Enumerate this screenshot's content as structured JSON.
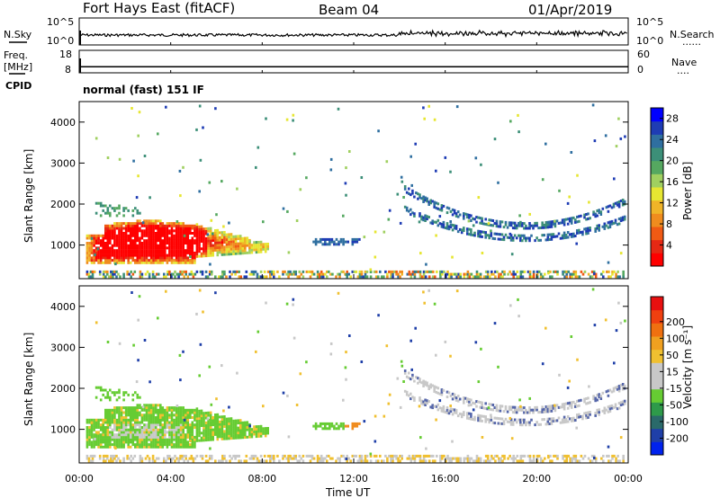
{
  "header": {
    "station": "Fort Hays East (fitACF)",
    "beam": "Beam 04",
    "date": "01/Apr/2019",
    "mode": "normal (fast) 151 IF"
  },
  "side_labels": {
    "nsky": "N.Sky",
    "freq_line1": "Freq.",
    "freq_line2": "[MHz]",
    "cpid": "CPID",
    "nsearch": "N.Search",
    "nave": "Nave",
    "dots": "......",
    "dots_short": "...."
  },
  "colors": {
    "power_bar": [
      "#0000ff",
      "#1e3cb4",
      "#2f6fa0",
      "#3c8f78",
      "#55a860",
      "#a0d060",
      "#e6e632",
      "#f0b428",
      "#f08c1e",
      "#f05a14",
      "#e62814",
      "#ff0000"
    ],
    "velocity_bar": [
      "#0022ee",
      "#1f3fa8",
      "#2a6a6a",
      "#2e9a4a",
      "#66cc33",
      "#c8c8c8",
      "#c8c8c8",
      "#f0c030",
      "#f0a020",
      "#f07010",
      "#f04010",
      "#e81010"
    ]
  },
  "chart_data": [
    {
      "type": "line",
      "name": "noise-panel",
      "ylabel_left": "N.Sky",
      "ylabel_right": "N.Search",
      "left_ticks": [
        "10^5",
        "10^0"
      ],
      "right_ticks": [
        "10^5",
        "10^0"
      ],
      "x_range_hours": [
        0,
        24
      ],
      "series": [
        {
          "values_hours": [
            0.1,
            2,
            4,
            6,
            8,
            10,
            12,
            14,
            16,
            18,
            20,
            22,
            24
          ],
          "level": "mid"
        }
      ]
    },
    {
      "type": "line",
      "name": "frequency-panel",
      "ylabel_left": "Freq. [MHz]",
      "ylabel_right": "Nave",
      "left_ticks": [
        18,
        8
      ],
      "right_ticks": [
        60,
        0
      ],
      "ylim_left": [
        8,
        18
      ],
      "x_range_hours": [
        0,
        24
      ],
      "frequency_mhz_approx": 10.7
    },
    {
      "type": "heatmap",
      "name": "power",
      "ylabel": "Slant Range [km]",
      "ylim": [
        180,
        4500
      ],
      "yticks": [
        1000,
        2000,
        3000,
        4000
      ],
      "colorbar_label": "Power [dB]",
      "colorbar_ticks": [
        4,
        8,
        12,
        16,
        20,
        24,
        28
      ],
      "colorbar_range": [
        0,
        30
      ]
    },
    {
      "type": "heatmap",
      "name": "velocity",
      "ylabel": "Slant Range [km]",
      "ylim": [
        180,
        4500
      ],
      "yticks": [
        1000,
        2000,
        3000,
        4000
      ],
      "colorbar_label": "Velocity [m s⁻¹]",
      "colorbar_ticks": [
        200,
        100,
        50,
        15,
        -15,
        -50,
        -100,
        -200
      ],
      "xlabel": "Time UT",
      "xticks": [
        "00:00",
        "04:00",
        "08:00",
        "12:00",
        "16:00",
        "20:00",
        "00:00"
      ],
      "xtick_hours": [
        0,
        4,
        8,
        12,
        16,
        20,
        24
      ]
    }
  ]
}
